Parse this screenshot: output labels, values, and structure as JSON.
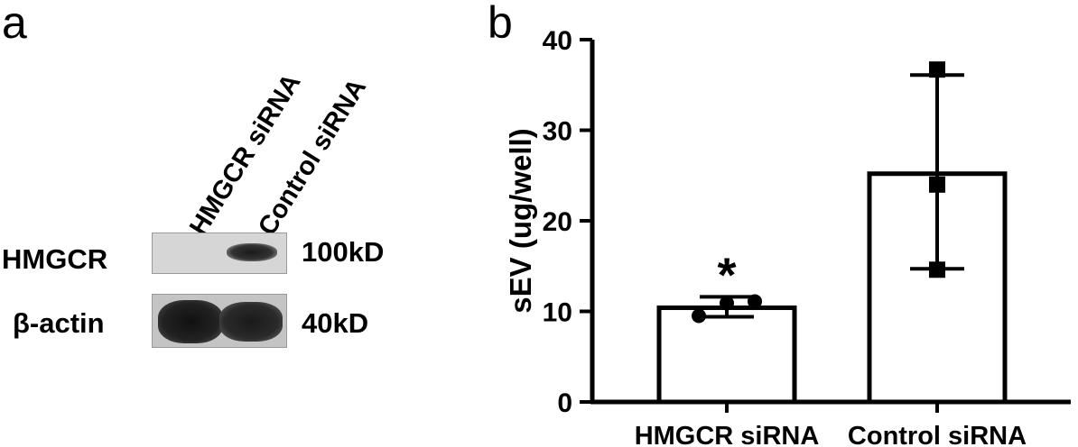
{
  "panels": {
    "a": "a",
    "b": "b"
  },
  "blot": {
    "lanes": [
      "HMGCR siRNA",
      "Control siRNA"
    ],
    "rows": [
      {
        "protein": "HMGCR",
        "size": "100kD"
      },
      {
        "protein": "β-actin",
        "size": "40kD"
      }
    ]
  },
  "chart_data": {
    "type": "bar",
    "categories": [
      "HMGCR siRNA",
      "Control siRNA"
    ],
    "values": [
      10.4,
      25.2
    ],
    "error": [
      [
        9.4,
        11.6
      ],
      [
        14.7,
        36.1
      ]
    ],
    "points": [
      [
        9.5,
        10.9,
        11.1
      ],
      [
        14.6,
        24.0,
        36.7
      ]
    ],
    "annotations": [
      {
        "category": "HMGCR siRNA",
        "text": "*"
      }
    ],
    "ylabel": "sEV (ug/well)",
    "ylim": [
      0,
      40
    ],
    "yticks": [
      0,
      10,
      20,
      30,
      40
    ],
    "grid": false
  }
}
